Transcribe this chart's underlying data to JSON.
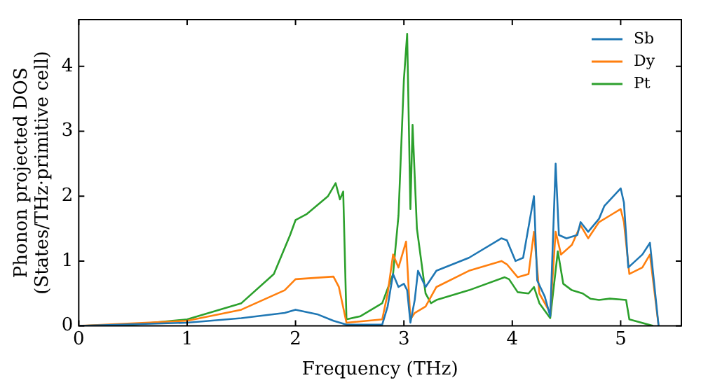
{
  "chart_data": {
    "type": "line",
    "xlabel": "Frequency (THz)",
    "ylabel": "Phonon projected DOS\n(States/THz·primitive cell)",
    "xlim": [
      0,
      5.56
    ],
    "ylim": [
      0,
      4.72
    ],
    "xticks": [
      0,
      1,
      2,
      3,
      4,
      5
    ],
    "yticks": [
      0,
      1,
      2,
      3,
      4
    ],
    "grid": false,
    "legend": "top right",
    "marker": "none",
    "line_style": "solid",
    "series": [
      {
        "name": "Sb",
        "color": "#1f77b4",
        "x": [
          0,
          1,
          1.5,
          1.9,
          2,
          2.2,
          2.35,
          2.47,
          2.8,
          2.85,
          2.9,
          2.95,
          3.0,
          3.03,
          3.06,
          3.1,
          3.13,
          3.2,
          3.3,
          3.6,
          3.9,
          3.95,
          4.03,
          4.1,
          4.2,
          4.23,
          4.3,
          4.35,
          4.4,
          4.43,
          4.5,
          4.6,
          4.63,
          4.7,
          4.8,
          4.85,
          5.0,
          5.03,
          5.07,
          5.2,
          5.27,
          5.35
        ],
        "values": [
          0,
          0.05,
          0.12,
          0.2,
          0.25,
          0.18,
          0.08,
          0.02,
          0.02,
          0.3,
          0.8,
          0.6,
          0.65,
          0.55,
          0.05,
          0.4,
          0.85,
          0.6,
          0.85,
          1.05,
          1.35,
          1.32,
          1.0,
          1.05,
          2.0,
          0.7,
          0.45,
          0.15,
          2.5,
          1.4,
          1.35,
          1.4,
          1.6,
          1.45,
          1.65,
          1.85,
          2.12,
          1.9,
          0.9,
          1.1,
          1.28,
          0
        ]
      },
      {
        "name": "Dy",
        "color": "#ff7f0e",
        "x": [
          0,
          1,
          1.5,
          1.9,
          2,
          2.35,
          2.4,
          2.47,
          2.8,
          2.85,
          2.9,
          2.95,
          3.02,
          3.06,
          3.1,
          3.2,
          3.3,
          3.6,
          3.9,
          3.95,
          4.05,
          4.15,
          4.2,
          4.25,
          4.35,
          4.4,
          4.45,
          4.55,
          4.63,
          4.7,
          4.8,
          4.9,
          5.0,
          5.03,
          5.08,
          5.2,
          5.27,
          5.35
        ],
        "values": [
          0,
          0.08,
          0.25,
          0.55,
          0.72,
          0.76,
          0.6,
          0.05,
          0.1,
          0.5,
          1.1,
          0.9,
          1.3,
          0.1,
          0.2,
          0.3,
          0.6,
          0.85,
          1.0,
          0.95,
          0.75,
          0.8,
          1.45,
          0.5,
          0.2,
          1.45,
          1.1,
          1.25,
          1.55,
          1.35,
          1.6,
          1.7,
          1.8,
          1.6,
          0.8,
          0.9,
          1.1,
          0
        ]
      },
      {
        "name": "Pt",
        "color": "#2ca02c",
        "x": [
          0,
          0.5,
          1,
          1.5,
          1.8,
          1.95,
          2,
          2.1,
          2.3,
          2.37,
          2.41,
          2.44,
          2.47,
          2.6,
          2.8,
          2.9,
          2.95,
          3.0,
          3.03,
          3.06,
          3.08,
          3.12,
          3.2,
          3.25,
          3.3,
          3.6,
          3.93,
          3.97,
          4.05,
          4.15,
          4.2,
          4.25,
          4.35,
          4.42,
          4.47,
          4.55,
          4.65,
          4.72,
          4.8,
          4.9,
          5.05,
          5.08,
          5.3
        ],
        "values": [
          0,
          0.02,
          0.1,
          0.35,
          0.8,
          1.4,
          1.63,
          1.72,
          2.0,
          2.2,
          1.95,
          2.07,
          0.1,
          0.15,
          0.35,
          0.8,
          1.7,
          3.8,
          4.5,
          1.8,
          3.1,
          1.5,
          0.5,
          0.35,
          0.4,
          0.55,
          0.75,
          0.72,
          0.52,
          0.5,
          0.6,
          0.35,
          0.12,
          1.15,
          0.65,
          0.55,
          0.5,
          0.42,
          0.4,
          0.42,
          0.4,
          0.1,
          0
        ]
      }
    ]
  }
}
